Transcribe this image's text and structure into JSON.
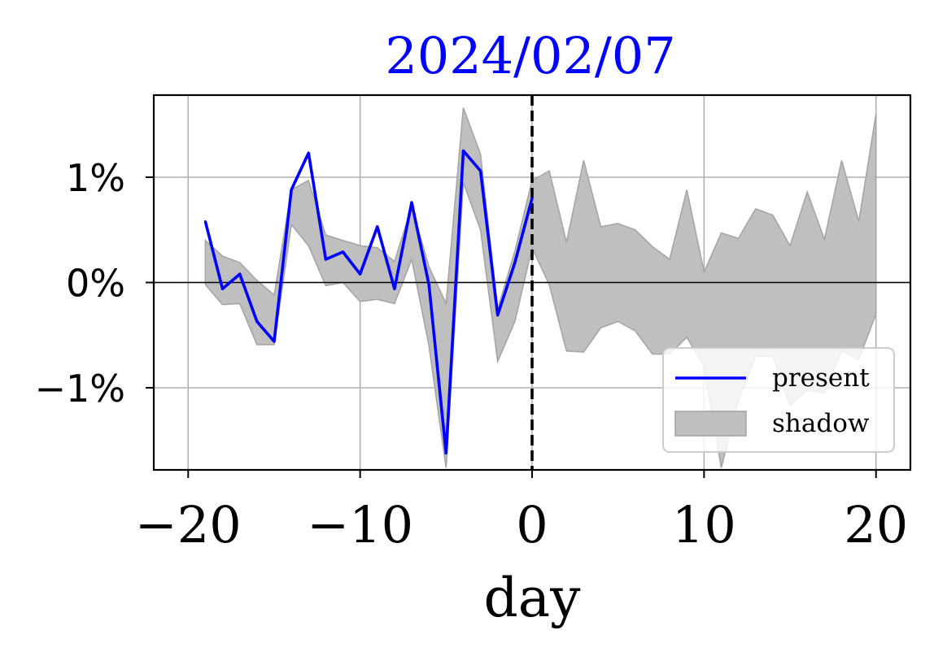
{
  "chart_data": {
    "type": "line",
    "title": "2024/02/07",
    "xlabel": "day",
    "ylabel": "",
    "xlim": [
      -22,
      22
    ],
    "ylim": [
      -1.78,
      1.78
    ],
    "x_ticks": [
      -20,
      -10,
      0,
      10,
      20
    ],
    "x_tick_labels": [
      "−20",
      "−10",
      "0",
      "10",
      "20"
    ],
    "y_ticks": [
      1,
      0,
      -1
    ],
    "y_tick_labels": [
      "1%",
      "0%",
      "−1%"
    ],
    "grid": true,
    "reference_lines": {
      "horizontal_at": 0,
      "vertical_dashed_at": 0
    },
    "legend_position": "lower-right",
    "colors": {
      "title": "#0000ff",
      "present": "#0000ff",
      "shadow_fill": "#bfbfbf",
      "shadow_edge": "#a6a6a6",
      "grid": "#b0b0b0"
    },
    "series": [
      {
        "name": "present",
        "kind": "line",
        "x": [
          -19,
          -18,
          -17,
          -16,
          -15,
          -14,
          -13,
          -12,
          -11,
          -10,
          -9,
          -8,
          -7,
          -6,
          -5,
          -4,
          -3,
          -2,
          -1,
          0
        ],
        "values": [
          0.58,
          -0.06,
          0.08,
          -0.37,
          -0.56,
          0.88,
          1.23,
          0.22,
          0.29,
          0.08,
          0.53,
          -0.06,
          0.76,
          -0.02,
          -1.62,
          1.25,
          1.06,
          -0.31,
          0.19,
          0.8
        ]
      },
      {
        "name": "shadow",
        "kind": "band",
        "x": [
          -19,
          -18,
          -17,
          -16,
          -15,
          -14,
          -13,
          -12,
          -11,
          -10,
          -9,
          -8,
          -7,
          -6,
          -5,
          -4,
          -3,
          -2,
          -1,
          0,
          1,
          2,
          3,
          4,
          5,
          6,
          7,
          8,
          9,
          10,
          11,
          12,
          13,
          14,
          15,
          16,
          17,
          18,
          19,
          20
        ],
        "upper": [
          0.4,
          0.25,
          0.19,
          0.02,
          -0.12,
          0.88,
          0.97,
          0.45,
          0.4,
          0.35,
          0.33,
          0.2,
          0.72,
          0.15,
          -0.2,
          1.66,
          1.22,
          -0.25,
          0.3,
          0.97,
          1.06,
          0.38,
          1.16,
          0.53,
          0.56,
          0.5,
          0.34,
          0.22,
          0.88,
          0.1,
          0.47,
          0.42,
          0.7,
          0.64,
          0.35,
          0.86,
          0.41,
          1.16,
          0.58,
          1.6
        ],
        "lower": [
          -0.02,
          -0.21,
          -0.2,
          -0.59,
          -0.59,
          0.55,
          0.35,
          -0.03,
          0.0,
          -0.18,
          -0.16,
          -0.2,
          0.22,
          -0.6,
          -1.76,
          0.95,
          0.5,
          -0.75,
          -0.37,
          0.33,
          -0.02,
          -0.65,
          -0.66,
          -0.43,
          -0.37,
          -0.46,
          -0.68,
          -0.68,
          -0.52,
          -0.8,
          -1.76,
          -1.12,
          -0.7,
          -0.7,
          -1.17,
          -1.02,
          -1.05,
          -0.65,
          -0.73,
          -0.3
        ]
      }
    ],
    "legend": [
      {
        "label": "present",
        "swatch": "line"
      },
      {
        "label": "shadow",
        "swatch": "patch"
      }
    ]
  }
}
